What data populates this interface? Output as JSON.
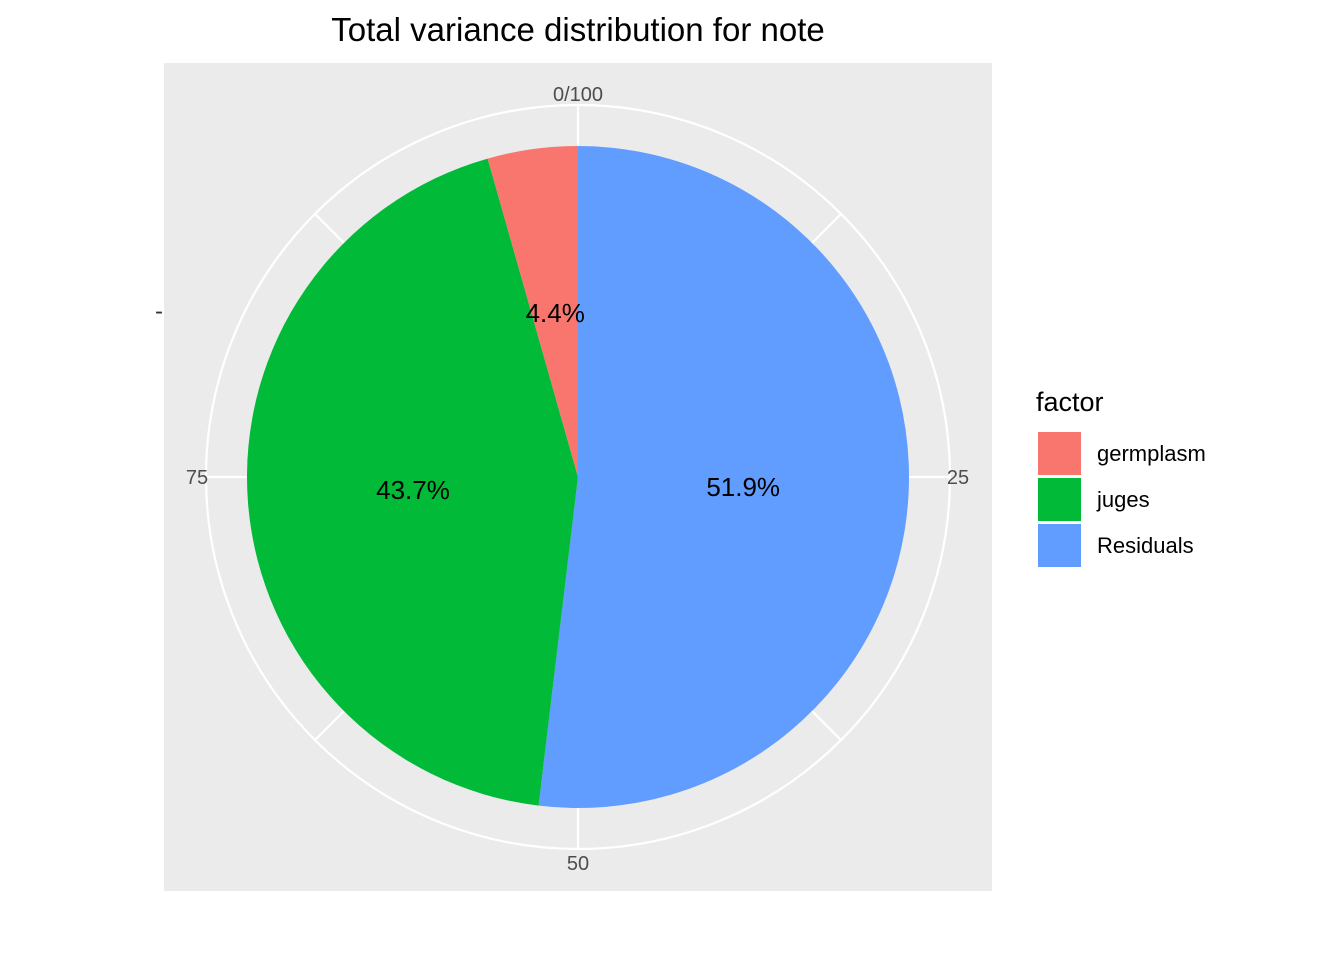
{
  "chart_data": {
    "type": "pie",
    "title": "Total variance distribution for note",
    "categories": [
      "germplasm",
      "juges",
      "Residuals"
    ],
    "values": [
      4.4,
      43.7,
      51.9
    ],
    "labels": [
      "4.4%",
      "43.7%",
      "51.9%"
    ],
    "colors": [
      "#F8766D",
      "#00BA38",
      "#619CFF"
    ],
    "theta_ticks": [
      {
        "value": 0,
        "label": "0/100"
      },
      {
        "value": 25,
        "label": "25"
      },
      {
        "value": 50,
        "label": "50"
      },
      {
        "value": 75,
        "label": "75"
      }
    ],
    "y_tick_label": "-",
    "legend": {
      "title": "factor",
      "position": "right",
      "items": [
        "germplasm",
        "juges",
        "Residuals"
      ]
    },
    "panel_background": "#EBEBEB",
    "grid": true
  }
}
